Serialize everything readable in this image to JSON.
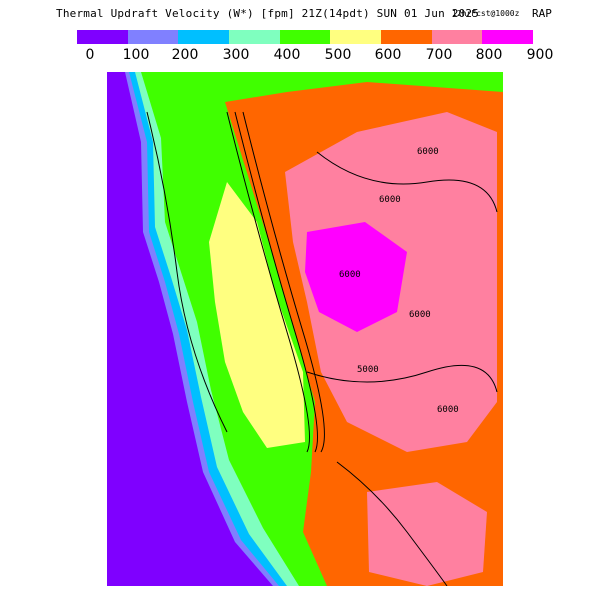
{
  "header": {
    "title": "Thermal Updraft Velocity (W*) [fpm] 21Z(14pdt) SUN 01 Jun 2025",
    "subtitle": "12hrFcst@1000z",
    "model": "RAP"
  },
  "legend": {
    "ticks": [
      "0",
      "100",
      "200",
      "300",
      "400",
      "500",
      "600",
      "700",
      "800",
      "900"
    ],
    "colors": [
      "#7f00ff",
      "#8080ff",
      "#00bfff",
      "#7fffbf",
      "#40ff00",
      "#ffff80",
      "#ff6600",
      "#ff80a0",
      "#ff00ff"
    ]
  },
  "map": {
    "ocean_color": "#7f00ff",
    "contour_labels": [
      "6000",
      "6000",
      "6000",
      "6000",
      "5000",
      "6000"
    ],
    "palette": {
      "c100": "#8080ff",
      "c200": "#00bfff",
      "c300": "#7fffbf",
      "c400": "#40ff00",
      "c500": "#ffff80",
      "c600": "#ff6600",
      "c700": "#ff80a0",
      "c800": "#ff00ff"
    }
  }
}
